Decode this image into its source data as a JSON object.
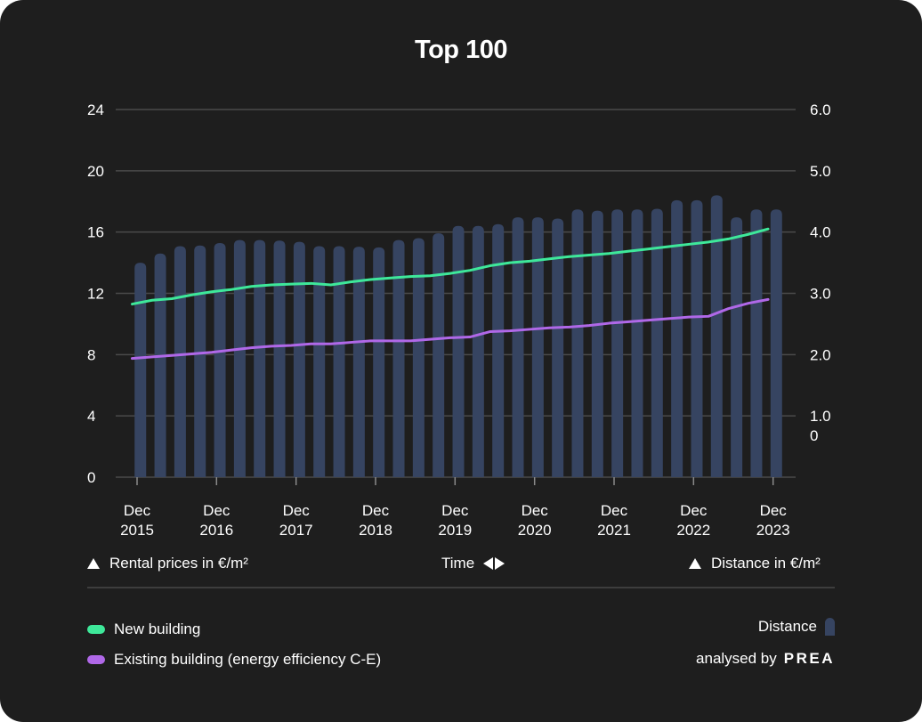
{
  "chart_data": {
    "type": "bar+line",
    "title": "Top 100",
    "x_ticks": [
      {
        "line1": "Dec",
        "line2": "2015"
      },
      {
        "line1": "Dec",
        "line2": "2016"
      },
      {
        "line1": "Dec",
        "line2": "2017"
      },
      {
        "line1": "Dec",
        "line2": "2018"
      },
      {
        "line1": "Dec",
        "line2": "2019"
      },
      {
        "line1": "Dec",
        "line2": "2020"
      },
      {
        "line1": "Dec",
        "line2": "2021"
      },
      {
        "line1": "Dec",
        "line2": "2022"
      },
      {
        "line1": "Dec",
        "line2": "2023"
      }
    ],
    "y_left": {
      "label": "Rental prices in €/m²",
      "ticks": [
        0,
        4,
        8,
        12,
        16,
        20,
        24
      ],
      "range": [
        0,
        24
      ]
    },
    "y_right": {
      "label": "Distance in €/m²",
      "ticks": [
        "6.0",
        "5.0",
        "4.0",
        "3.0",
        "2.0",
        "1.0",
        "0"
      ],
      "range": [
        0,
        6
      ]
    },
    "x_label": "Time",
    "bars": {
      "name": "Distance",
      "color": "#364461",
      "values": [
        3.5,
        3.65,
        3.77,
        3.78,
        3.82,
        3.87,
        3.87,
        3.86,
        3.84,
        3.77,
        3.77,
        3.76,
        3.75,
        3.87,
        3.9,
        3.98,
        4.1,
        4.1,
        4.13,
        4.24,
        4.24,
        4.22,
        4.37,
        4.35,
        4.37,
        4.37,
        4.38,
        4.52,
        4.52,
        4.6,
        4.24,
        4.37,
        4.37
      ]
    },
    "series": [
      {
        "name": "New building",
        "color": "#3ee89a",
        "values": [
          11.3,
          11.55,
          11.65,
          11.9,
          12.1,
          12.25,
          12.45,
          12.55,
          12.6,
          12.65,
          12.55,
          12.75,
          12.9,
          13.0,
          13.1,
          13.15,
          13.3,
          13.5,
          13.8,
          14.0,
          14.1,
          14.25,
          14.4,
          14.5,
          14.6,
          14.75,
          14.9,
          15.05,
          15.2,
          15.35,
          15.55,
          15.85,
          16.2
        ]
      },
      {
        "name": "Existing building (energy efficiency C-E)",
        "color": "#b068e8",
        "values": [
          7.75,
          7.85,
          7.95,
          8.05,
          8.15,
          8.3,
          8.45,
          8.55,
          8.6,
          8.7,
          8.7,
          8.8,
          8.9,
          8.9,
          8.9,
          9.0,
          9.1,
          9.15,
          9.5,
          9.55,
          9.65,
          9.75,
          9.8,
          9.9,
          10.05,
          10.15,
          10.25,
          10.35,
          10.45,
          10.5,
          11.0,
          11.35,
          11.6
        ]
      }
    ]
  },
  "axis_labels": {
    "left": "Rental prices in €/m²",
    "center": "Time",
    "right": "Distance in €/m²"
  },
  "legend": {
    "new_building": "New building",
    "existing_building": "Existing building (energy efficiency C-E)",
    "distance": "Distance"
  },
  "credit": {
    "prefix": "analysed by",
    "brand": "PREA"
  },
  "colors": {
    "background": "#1e1e1e",
    "bar": "#364461",
    "new_building": "#3ee89a",
    "existing_building": "#b068e8"
  }
}
